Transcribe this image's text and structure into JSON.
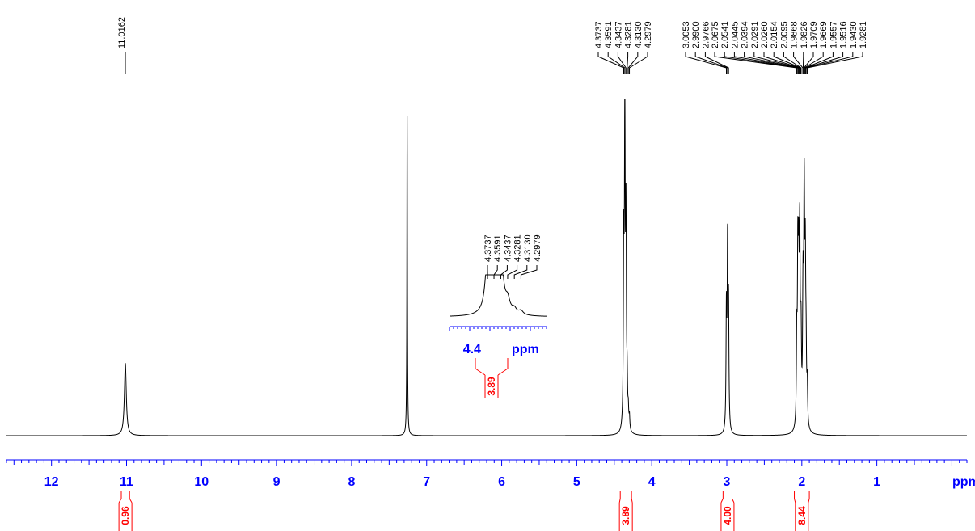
{
  "colors": {
    "spectrum": "#000000",
    "axis": "#0000ff",
    "integral": "#ff0000"
  },
  "chart_data": {
    "type": "line",
    "xlabel": "ppm",
    "x_reversed": true,
    "xlim": [
      12.6,
      -0.2
    ],
    "x_ticks": [
      12,
      11,
      10,
      9,
      8,
      7,
      6,
      5,
      4,
      3,
      2,
      1
    ],
    "x_minor_tick_step": 0.1,
    "y_max_relative": 1.0,
    "peaks": [
      {
        "ppm": 11.0162,
        "height": 0.22,
        "width": 0.015
      },
      {
        "ppm": 7.26,
        "height": 0.97,
        "width": 0.004
      },
      {
        "ppm": 4.3737,
        "height": 0.52,
        "width": 0.006
      },
      {
        "ppm": 4.3591,
        "height": 0.96,
        "width": 0.006
      },
      {
        "ppm": 4.3437,
        "height": 0.6,
        "width": 0.006
      },
      {
        "ppm": 4.3281,
        "height": 0.12,
        "width": 0.006
      },
      {
        "ppm": 4.313,
        "height": 0.05,
        "width": 0.006
      },
      {
        "ppm": 4.2979,
        "height": 0.04,
        "width": 0.006
      },
      {
        "ppm": 3.0053,
        "height": 0.35,
        "width": 0.006
      },
      {
        "ppm": 2.99,
        "height": 0.54,
        "width": 0.006
      },
      {
        "ppm": 2.9766,
        "height": 0.35,
        "width": 0.006
      },
      {
        "ppm": 2.0675,
        "height": 0.25,
        "width": 0.006
      },
      {
        "ppm": 2.0541,
        "height": 0.46,
        "width": 0.006
      },
      {
        "ppm": 2.0445,
        "height": 0.3,
        "width": 0.006
      },
      {
        "ppm": 2.0394,
        "height": 0.22,
        "width": 0.006
      },
      {
        "ppm": 2.0291,
        "height": 0.32,
        "width": 0.006
      },
      {
        "ppm": 2.026,
        "height": 0.25,
        "width": 0.006
      },
      {
        "ppm": 2.0154,
        "height": 0.12,
        "width": 0.006
      },
      {
        "ppm": 2.0095,
        "height": 0.2,
        "width": 0.006
      },
      {
        "ppm": 1.9868,
        "height": 0.15,
        "width": 0.006
      },
      {
        "ppm": 1.9826,
        "height": 0.28,
        "width": 0.006
      },
      {
        "ppm": 1.9709,
        "height": 0.33,
        "width": 0.006
      },
      {
        "ppm": 1.9669,
        "height": 0.42,
        "width": 0.006
      },
      {
        "ppm": 1.9557,
        "height": 0.3,
        "width": 0.006
      },
      {
        "ppm": 1.9516,
        "height": 0.22,
        "width": 0.006
      },
      {
        "ppm": 1.943,
        "height": 0.18,
        "width": 0.006
      },
      {
        "ppm": 1.9281,
        "height": 0.12,
        "width": 0.006
      }
    ],
    "peak_label_groups": [
      {
        "labels": [
          "11.0162"
        ],
        "target_ppm": [
          11.0162
        ]
      },
      {
        "labels": [
          "4.3737",
          "4.3591",
          "4.3437",
          "4.3281",
          "4.3130",
          "4.2979"
        ],
        "target_ppm": [
          4.3737,
          4.3591,
          4.3437,
          4.3281,
          4.313,
          4.2979
        ]
      },
      {
        "labels": [
          "3.0053",
          "2.9900",
          "2.9766"
        ],
        "target_ppm": [
          3.0053,
          2.99,
          2.9766
        ]
      },
      {
        "labels": [
          "2.0675",
          "2.0541",
          "2.0445",
          "2.0394",
          "2.0291",
          "2.0260",
          "2.0154",
          "2.0095",
          "1.9868",
          "1.9826",
          "1.9709",
          "1.9669",
          "1.9557",
          "1.9516",
          "1.9430",
          "1.9281"
        ],
        "target_ppm": [
          2.0675,
          2.0541,
          2.0445,
          2.0394,
          2.0291,
          2.026,
          2.0154,
          2.0095,
          1.9868,
          1.9826,
          1.9709,
          1.9669,
          1.9557,
          1.9516,
          1.943,
          1.9281
        ]
      }
    ],
    "integrals": [
      {
        "from_ppm": 11.07,
        "to_ppm": 10.96,
        "value": "0.96"
      },
      {
        "from_ppm": 4.42,
        "to_ppm": 4.27,
        "value": "3.89"
      },
      {
        "from_ppm": 3.05,
        "to_ppm": 2.93,
        "value": "4.00"
      },
      {
        "from_ppm": 2.1,
        "to_ppm": 1.9,
        "value": "8.44"
      }
    ],
    "inset": {
      "xlabel": "ppm",
      "x_tick_label": "4.4",
      "tick_ppm": 4.4,
      "xlim": [
        4.46,
        4.24
      ],
      "peak_labels": [
        "4.3737",
        "4.3591",
        "4.3437",
        "4.3281",
        "4.3130",
        "4.2979"
      ],
      "integral": {
        "value": "3.89"
      }
    }
  }
}
